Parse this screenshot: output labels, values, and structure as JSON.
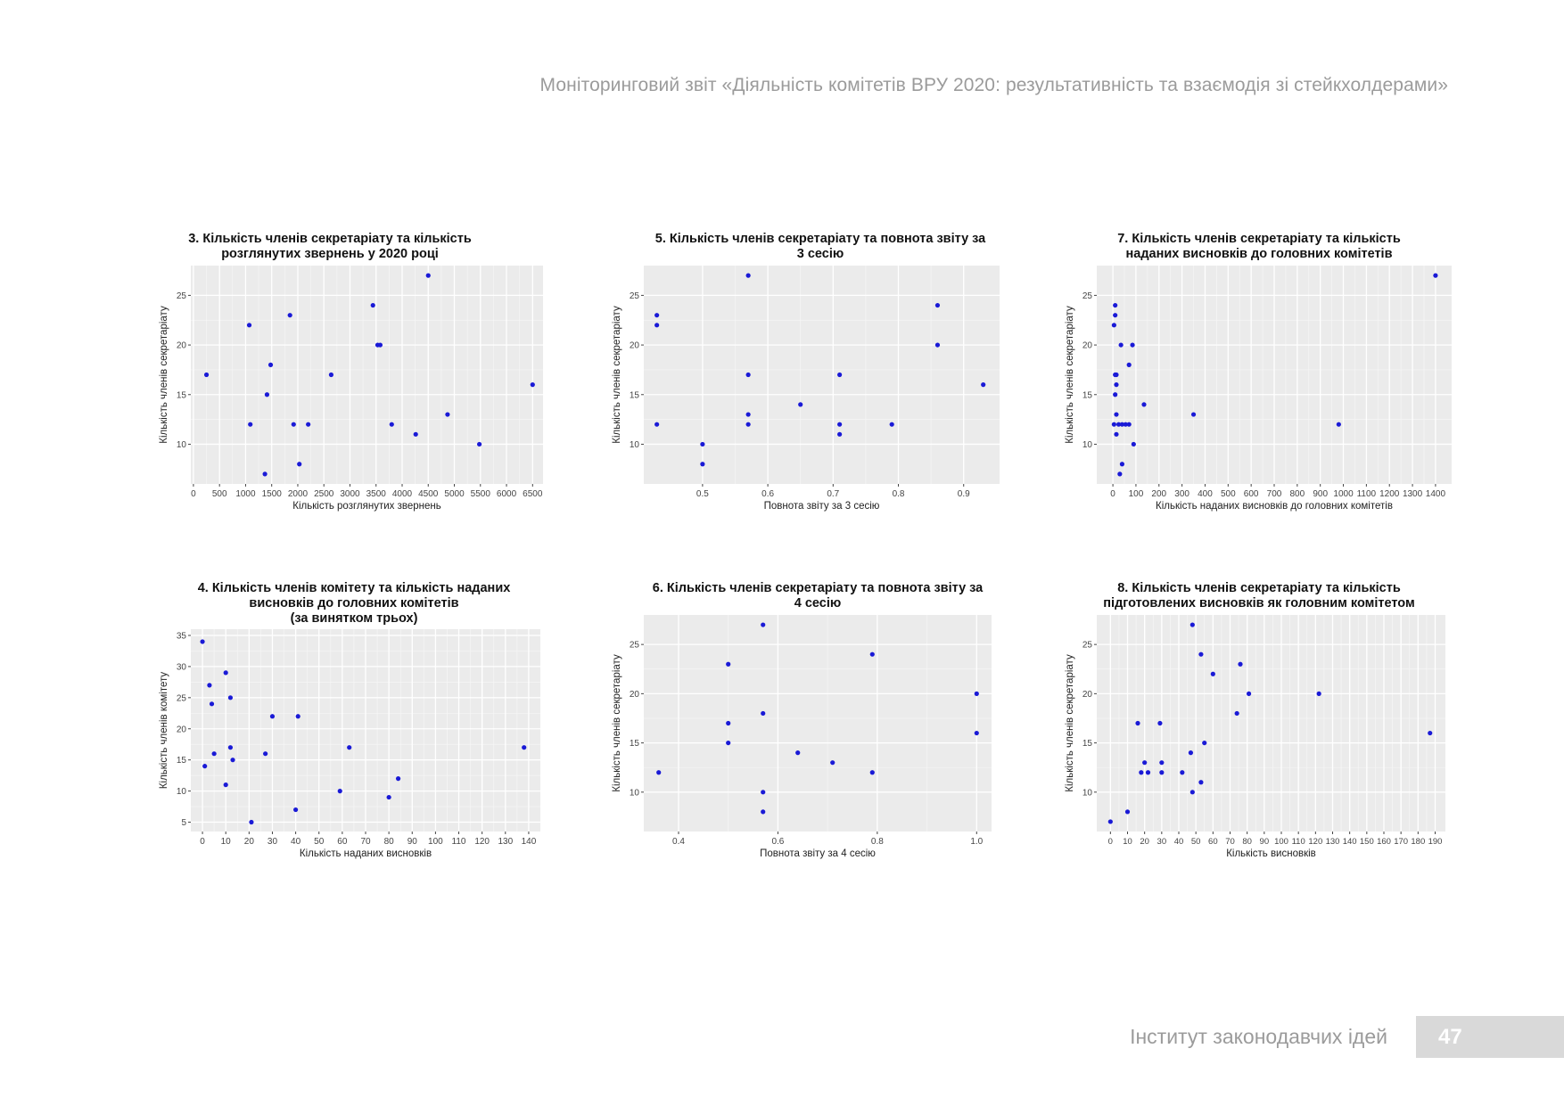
{
  "header": {
    "title": "Моніторинговий звіт «Діяльність комітетів ВРУ 2020: результативність та взаємодія зі стейкхолдерами»"
  },
  "footer": {
    "org": "Інститут законодавчих ідей",
    "page_number": "47"
  },
  "colors": {
    "point": "#1a1ad6",
    "panel": "#ebebeb",
    "grid": "#ffffff"
  },
  "chart_data": [
    {
      "type": "scatter",
      "title_lines": [
        "3. Кількість членів секретаріату та кількість",
        "розглянутих звернень у 2020 році"
      ],
      "xlabel": "Кількість розглянутих звернень",
      "ylabel": "Кількість членів секретаріату",
      "xlim": [
        -50,
        6700
      ],
      "ylim": [
        6,
        28
      ],
      "xticks": [
        0,
        500,
        1000,
        1500,
        2000,
        2500,
        3000,
        3500,
        4000,
        4500,
        5000,
        5500,
        6000,
        6500
      ],
      "yticks": [
        10,
        15,
        20,
        25
      ],
      "points": [
        [
          250,
          17
        ],
        [
          1070,
          22
        ],
        [
          1090,
          12
        ],
        [
          1370,
          7
        ],
        [
          1410,
          15
        ],
        [
          1480,
          18
        ],
        [
          1850,
          23
        ],
        [
          1920,
          12
        ],
        [
          2030,
          8
        ],
        [
          2200,
          12
        ],
        [
          2640,
          17
        ],
        [
          3440,
          24
        ],
        [
          3530,
          20
        ],
        [
          3580,
          20
        ],
        [
          3800,
          12
        ],
        [
          4260,
          11
        ],
        [
          4500,
          27
        ],
        [
          4870,
          13
        ],
        [
          5480,
          10
        ],
        [
          6500,
          16
        ]
      ]
    },
    {
      "type": "scatter",
      "title_lines": [
        "5. Кількість членів секретаріату та повнота звіту за",
        "3 сесію"
      ],
      "xlabel": "Повнота звіту за 3 сесію",
      "ylabel": "Кількість членів секретаріату",
      "xlim": [
        0.41,
        0.955
      ],
      "ylim": [
        6,
        28
      ],
      "xticks": [
        0.5,
        0.6,
        0.7,
        0.8,
        0.9
      ],
      "xtick_labels": [
        "0.5",
        "0.6",
        "0.7",
        "0.8",
        "0.9"
      ],
      "yticks": [
        10,
        15,
        20,
        25
      ],
      "points": [
        [
          0.43,
          23
        ],
        [
          0.43,
          22
        ],
        [
          0.43,
          12
        ],
        [
          0.5,
          10
        ],
        [
          0.5,
          8
        ],
        [
          0.57,
          27
        ],
        [
          0.57,
          17
        ],
        [
          0.57,
          13
        ],
        [
          0.57,
          12
        ],
        [
          0.65,
          14
        ],
        [
          0.71,
          17
        ],
        [
          0.71,
          12
        ],
        [
          0.71,
          11
        ],
        [
          0.79,
          12
        ],
        [
          0.86,
          24
        ],
        [
          0.86,
          20
        ],
        [
          0.93,
          16
        ]
      ]
    },
    {
      "type": "scatter",
      "title_lines": [
        "7. Кількість членів секретаріату та кількість",
        "наданих висновків до головних комітетів"
      ],
      "xlabel": "Кількість наданих висновків до головних комітетів",
      "ylabel": "Кількість членів секретаріату",
      "xlim": [
        -70,
        1470
      ],
      "ylim": [
        6,
        28
      ],
      "xticks": [
        0,
        100,
        200,
        300,
        400,
        500,
        600,
        700,
        800,
        900,
        1000,
        1100,
        1200,
        1300,
        1400
      ],
      "xtick_labels": [
        "0",
        "100",
        "200",
        "300",
        "400",
        "500",
        "600",
        "700",
        "800",
        "900",
        "1000",
        "1100",
        "1200",
        "1300",
        "1400"
      ],
      "yticks": [
        10,
        15,
        20,
        25
      ],
      "points": [
        [
          10,
          24
        ],
        [
          10,
          23
        ],
        [
          5,
          22
        ],
        [
          15,
          17
        ],
        [
          10,
          17
        ],
        [
          15,
          16
        ],
        [
          10,
          15
        ],
        [
          15,
          13
        ],
        [
          5,
          12
        ],
        [
          25,
          12
        ],
        [
          40,
          12
        ],
        [
          55,
          12
        ],
        [
          70,
          12
        ],
        [
          15,
          11
        ],
        [
          30,
          7
        ],
        [
          40,
          8
        ],
        [
          35,
          20
        ],
        [
          85,
          20
        ],
        [
          70,
          18
        ],
        [
          90,
          10
        ],
        [
          135,
          14
        ],
        [
          350,
          13
        ],
        [
          980,
          12
        ],
        [
          1400,
          27
        ]
      ]
    },
    {
      "type": "scatter",
      "title_lines": [
        "4. Кількість членів комітету та кількість наданих",
        "висновків до головних комітетів",
        "(за винятком трьох)"
      ],
      "xlabel": "Кількість наданих висновків",
      "ylabel": "Кількість членів комітету",
      "xlim": [
        -5,
        145
      ],
      "ylim": [
        3.5,
        36
      ],
      "xticks": [
        0,
        10,
        20,
        30,
        40,
        50,
        60,
        70,
        80,
        90,
        100,
        110,
        120,
        130,
        140
      ],
      "yticks": [
        5,
        10,
        15,
        20,
        25,
        30,
        35
      ],
      "points": [
        [
          0,
          34
        ],
        [
          1,
          14
        ],
        [
          3,
          27
        ],
        [
          4,
          24
        ],
        [
          5,
          16
        ],
        [
          10,
          29
        ],
        [
          10,
          11
        ],
        [
          12,
          25
        ],
        [
          12,
          17
        ],
        [
          13,
          15
        ],
        [
          27,
          16
        ],
        [
          30,
          22
        ],
        [
          21,
          5
        ],
        [
          40,
          7
        ],
        [
          41,
          22
        ],
        [
          59,
          10
        ],
        [
          63,
          17
        ],
        [
          80,
          9
        ],
        [
          84,
          12
        ],
        [
          138,
          17
        ]
      ]
    },
    {
      "type": "scatter",
      "title_lines": [
        "6. Кількість членів секретаріату та повнота звіту за",
        "4 сесію"
      ],
      "xlabel": "Повнота звіту за 4 сесію",
      "ylabel": "Кількість членів секретаріату",
      "xlim": [
        0.33,
        1.03
      ],
      "ylim": [
        6,
        28
      ],
      "xticks": [
        0.4,
        0.6,
        0.8,
        1.0
      ],
      "xtick_labels": [
        "0.4",
        "0.6",
        "0.8",
        "1.0"
      ],
      "yticks": [
        10,
        15,
        20,
        25
      ],
      "points": [
        [
          0.36,
          12
        ],
        [
          0.5,
          23
        ],
        [
          0.5,
          17
        ],
        [
          0.5,
          15
        ],
        [
          0.57,
          27
        ],
        [
          0.57,
          18
        ],
        [
          0.57,
          10
        ],
        [
          0.57,
          8
        ],
        [
          0.64,
          14
        ],
        [
          0.71,
          13
        ],
        [
          0.79,
          24
        ],
        [
          0.79,
          12
        ],
        [
          1.0,
          20
        ],
        [
          1.0,
          16
        ]
      ]
    },
    {
      "type": "scatter",
      "title_lines": [
        "8. Кількість членів секретаріату та кількість",
        "підготовлених висновків як головним комітетом"
      ],
      "xlabel": "Кількість висновків",
      "ylabel": "Кількість членів секретаріату",
      "xlim": [
        -8,
        196
      ],
      "ylim": [
        6,
        28
      ],
      "xticks": [
        0,
        10,
        20,
        30,
        40,
        50,
        60,
        70,
        80,
        90,
        100,
        110,
        120,
        130,
        140,
        150,
        160,
        170,
        180,
        190
      ],
      "yticks": [
        10,
        15,
        20,
        25
      ],
      "points": [
        [
          0,
          7
        ],
        [
          10,
          8
        ],
        [
          16,
          17
        ],
        [
          18,
          12
        ],
        [
          20,
          13
        ],
        [
          22,
          12
        ],
        [
          29,
          17
        ],
        [
          30,
          13
        ],
        [
          30,
          12
        ],
        [
          42,
          12
        ],
        [
          47,
          14
        ],
        [
          48,
          10
        ],
        [
          48,
          27
        ],
        [
          53,
          24
        ],
        [
          53,
          11
        ],
        [
          55,
          15
        ],
        [
          60,
          22
        ],
        [
          74,
          18
        ],
        [
          76,
          23
        ],
        [
          81,
          20
        ],
        [
          122,
          20
        ],
        [
          187,
          16
        ]
      ]
    }
  ]
}
